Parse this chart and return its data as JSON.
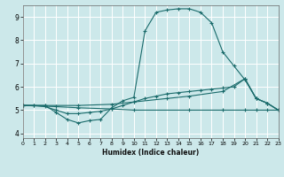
{
  "xlabel": "Humidex (Indice chaleur)",
  "xlim": [
    0,
    23
  ],
  "ylim": [
    3.8,
    9.5
  ],
  "xticks": [
    0,
    1,
    2,
    3,
    4,
    5,
    6,
    7,
    8,
    9,
    10,
    11,
    12,
    13,
    14,
    15,
    16,
    17,
    18,
    19,
    20,
    21,
    22,
    23
  ],
  "yticks": [
    4,
    5,
    6,
    7,
    8,
    9
  ],
  "bg_color": "#cce8ea",
  "line_color": "#1a6b6b",
  "grid_color": "#ffffff",
  "series1": [
    [
      0,
      5.2
    ],
    [
      1,
      5.2
    ],
    [
      2,
      5.2
    ],
    [
      3,
      4.9
    ],
    [
      4,
      4.6
    ],
    [
      5,
      4.45
    ],
    [
      6,
      4.55
    ],
    [
      7,
      4.6
    ],
    [
      8,
      5.1
    ],
    [
      9,
      5.4
    ],
    [
      10,
      5.55
    ],
    [
      11,
      8.4
    ],
    [
      12,
      9.2
    ],
    [
      13,
      9.3
    ],
    [
      14,
      9.35
    ],
    [
      15,
      9.35
    ],
    [
      16,
      9.2
    ],
    [
      17,
      8.75
    ],
    [
      18,
      7.5
    ],
    [
      19,
      6.9
    ],
    [
      20,
      6.3
    ],
    [
      21,
      5.5
    ],
    [
      22,
      5.3
    ],
    [
      23,
      5.0
    ]
  ],
  "series2": [
    [
      0,
      5.2
    ],
    [
      1,
      5.2
    ],
    [
      2,
      5.15
    ],
    [
      3,
      5.0
    ],
    [
      4,
      4.85
    ],
    [
      5,
      4.85
    ],
    [
      6,
      4.9
    ],
    [
      7,
      4.95
    ],
    [
      8,
      5.05
    ],
    [
      9,
      5.2
    ],
    [
      10,
      5.35
    ],
    [
      11,
      5.5
    ],
    [
      12,
      5.6
    ],
    [
      13,
      5.7
    ],
    [
      14,
      5.75
    ],
    [
      15,
      5.8
    ],
    [
      16,
      5.85
    ],
    [
      17,
      5.9
    ],
    [
      18,
      5.95
    ],
    [
      19,
      6.0
    ],
    [
      20,
      6.35
    ],
    [
      21,
      5.5
    ],
    [
      22,
      5.3
    ],
    [
      23,
      5.0
    ]
  ],
  "series3": [
    [
      0,
      5.2
    ],
    [
      2,
      5.2
    ],
    [
      5,
      5.2
    ],
    [
      8,
      5.25
    ],
    [
      10,
      5.35
    ],
    [
      13,
      5.5
    ],
    [
      15,
      5.6
    ],
    [
      18,
      5.8
    ],
    [
      20,
      6.35
    ],
    [
      21,
      5.5
    ],
    [
      22,
      5.3
    ],
    [
      23,
      5.0
    ]
  ],
  "series4": [
    [
      0,
      5.2
    ],
    [
      3,
      5.15
    ],
    [
      5,
      5.1
    ],
    [
      8,
      5.05
    ],
    [
      10,
      5.0
    ],
    [
      15,
      5.0
    ],
    [
      18,
      5.0
    ],
    [
      20,
      5.0
    ],
    [
      21,
      5.0
    ],
    [
      22,
      5.0
    ],
    [
      23,
      5.0
    ]
  ]
}
